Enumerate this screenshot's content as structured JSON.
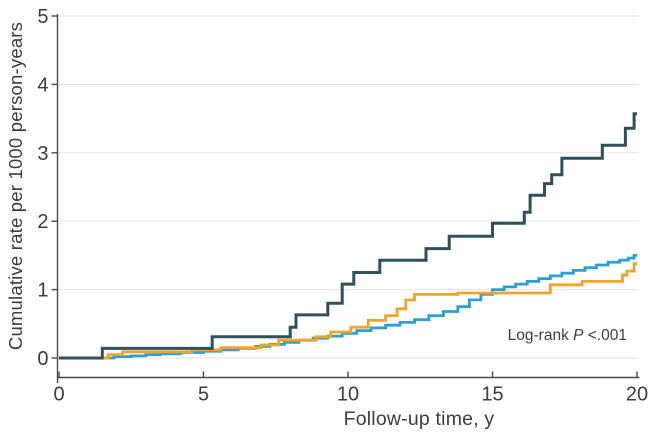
{
  "figure": {
    "y_axis_title": "Cumulative rate per 1000 person-years",
    "x_axis_title": "Follow-up time, y",
    "annotation": {
      "prefix": "Log-rank ",
      "stat": "P",
      "suffix": " <.001"
    }
  },
  "colors": {
    "background": "#ffffff",
    "axis": "#4a4a4a",
    "grid": "#e9e8e4",
    "tick_text": "#3d3d3d",
    "series_navy": "#30505c",
    "series_orange": "#eca52f",
    "series_blue": "#2ba0d2"
  },
  "chart_data": {
    "type": "line",
    "line_style": "step-post",
    "title": "",
    "xlabel": "Follow-up time, y",
    "ylabel": "Cumulative rate per 1000 person-years",
    "xlim": [
      0,
      20
    ],
    "ylim": [
      0,
      5
    ],
    "xticks": [
      0,
      5,
      10,
      15,
      20
    ],
    "yticks": [
      0,
      1,
      2,
      3,
      4,
      5
    ],
    "grid": "horizontal-light",
    "legend_position": "none",
    "annotation_text": "Log-rank P <.001",
    "series": [
      {
        "name": "series-light-blue",
        "color_key": "series_blue",
        "stroke_width": 2.8,
        "points": [
          [
            0,
            0
          ],
          [
            1.9,
            0.02
          ],
          [
            2.5,
            0.03
          ],
          [
            3.0,
            0.05
          ],
          [
            3.5,
            0.06
          ],
          [
            4.2,
            0.08
          ],
          [
            5.0,
            0.1
          ],
          [
            5.6,
            0.12
          ],
          [
            6.2,
            0.14
          ],
          [
            6.8,
            0.17
          ],
          [
            7.3,
            0.2
          ],
          [
            7.8,
            0.23
          ],
          [
            8.3,
            0.26
          ],
          [
            8.8,
            0.29
          ],
          [
            9.3,
            0.32
          ],
          [
            9.8,
            0.36
          ],
          [
            10.3,
            0.4
          ],
          [
            10.8,
            0.44
          ],
          [
            11.3,
            0.48
          ],
          [
            11.8,
            0.52
          ],
          [
            12.3,
            0.56
          ],
          [
            12.8,
            0.62
          ],
          [
            13.3,
            0.68
          ],
          [
            13.8,
            0.75
          ],
          [
            14.2,
            0.85
          ],
          [
            14.6,
            0.93
          ],
          [
            15.0,
            1.0
          ],
          [
            15.4,
            1.04
          ],
          [
            15.8,
            1.08
          ],
          [
            16.2,
            1.12
          ],
          [
            16.6,
            1.16
          ],
          [
            17.0,
            1.2
          ],
          [
            17.4,
            1.24
          ],
          [
            17.8,
            1.28
          ],
          [
            18.2,
            1.32
          ],
          [
            18.6,
            1.36
          ],
          [
            19.0,
            1.4
          ],
          [
            19.4,
            1.43
          ],
          [
            19.7,
            1.46
          ],
          [
            19.9,
            1.5
          ],
          [
            20,
            1.5
          ]
        ]
      },
      {
        "name": "series-orange",
        "color_key": "series_orange",
        "stroke_width": 2.8,
        "points": [
          [
            0,
            0
          ],
          [
            1.7,
            0.05
          ],
          [
            2.2,
            0.09
          ],
          [
            4.6,
            0.12
          ],
          [
            5.6,
            0.15
          ],
          [
            7.0,
            0.19
          ],
          [
            7.6,
            0.26
          ],
          [
            8.9,
            0.31
          ],
          [
            9.4,
            0.38
          ],
          [
            10.1,
            0.45
          ],
          [
            10.7,
            0.55
          ],
          [
            11.3,
            0.62
          ],
          [
            11.7,
            0.72
          ],
          [
            12.0,
            0.85
          ],
          [
            12.3,
            0.93
          ],
          [
            13.8,
            0.95
          ],
          [
            17.0,
            1.07
          ],
          [
            18.1,
            1.12
          ],
          [
            19.5,
            1.21
          ],
          [
            19.65,
            1.27
          ],
          [
            19.9,
            1.38
          ],
          [
            20,
            1.38
          ]
        ]
      },
      {
        "name": "series-dark-teal",
        "color_key": "series_navy",
        "stroke_width": 3,
        "points": [
          [
            0,
            0
          ],
          [
            1.5,
            0.14
          ],
          [
            5.3,
            0.31
          ],
          [
            8.0,
            0.45
          ],
          [
            8.2,
            0.63
          ],
          [
            9.3,
            0.8
          ],
          [
            9.8,
            1.08
          ],
          [
            10.2,
            1.25
          ],
          [
            11.1,
            1.43
          ],
          [
            12.7,
            1.6
          ],
          [
            13.5,
            1.78
          ],
          [
            15.0,
            1.97
          ],
          [
            16.1,
            2.13
          ],
          [
            16.3,
            2.38
          ],
          [
            16.8,
            2.55
          ],
          [
            17.05,
            2.68
          ],
          [
            17.4,
            2.92
          ],
          [
            18.8,
            3.11
          ],
          [
            19.6,
            3.36
          ],
          [
            19.9,
            3.57
          ],
          [
            20,
            3.57
          ]
        ]
      }
    ]
  }
}
